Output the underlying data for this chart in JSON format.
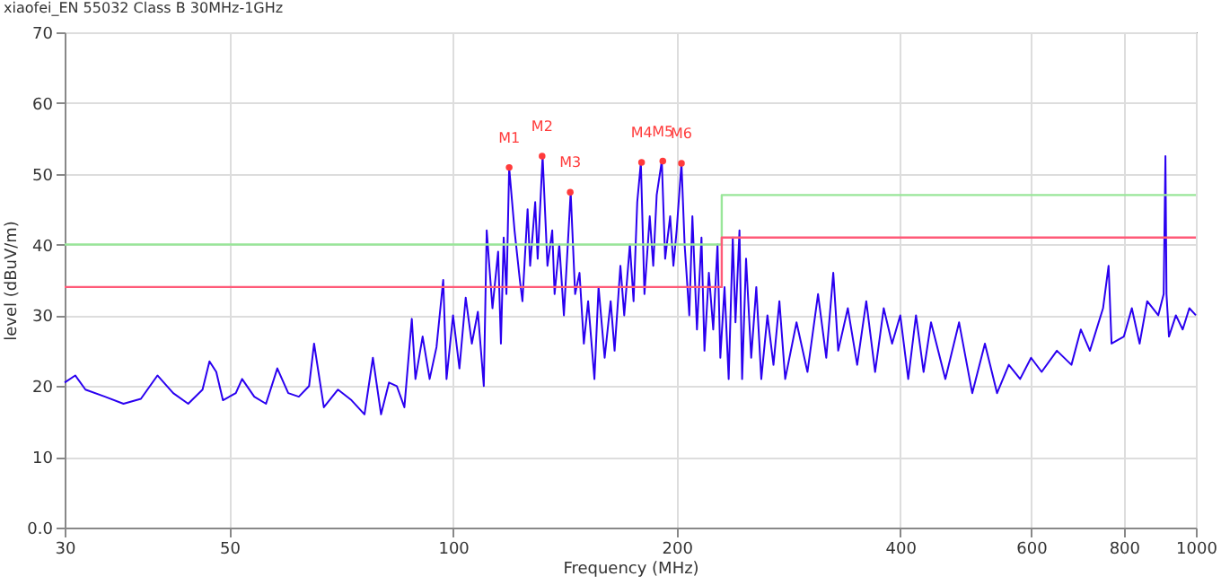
{
  "chart_data": {
    "type": "line",
    "title": "xiaofei_EN 55032 Class B 30MHz-1GHz",
    "xlabel": "Frequency (MHz)",
    "ylabel": "level (dBuV/m)",
    "log": "x",
    "xlim": [
      30,
      1000
    ],
    "xticks": [
      30,
      50,
      100,
      200,
      400,
      600,
      800,
      1000
    ],
    "ylim": [
      0,
      70
    ],
    "yticks": [
      {
        "value": 0,
        "label": "0.0"
      },
      10,
      20,
      30,
      40,
      50,
      60,
      70
    ],
    "grid": true,
    "series": [
      {
        "type": "line",
        "color": "#2a00f0",
        "x": [
          30,
          31,
          32,
          34,
          36,
          38,
          40,
          42,
          44,
          46,
          47,
          48,
          49,
          51,
          52,
          54,
          56,
          58,
          60,
          62,
          64,
          65,
          67,
          70,
          73,
          76,
          78,
          80,
          82,
          84,
          86,
          88,
          89,
          91,
          93,
          95,
          97,
          98,
          100,
          102,
          104,
          106,
          108,
          110,
          111,
          113,
          115,
          116,
          117,
          118,
          119,
          121,
          123,
          124,
          126,
          127,
          129,
          130,
          132,
          134,
          136,
          137,
          139,
          141,
          144,
          146,
          148,
          150,
          152,
          155,
          157,
          160,
          163,
          165,
          168,
          170,
          173,
          175,
          177,
          179,
          181,
          184,
          186,
          188,
          191,
          193,
          196,
          198,
          200,
          203,
          205,
          208,
          210,
          213,
          216,
          218,
          221,
          224,
          227,
          229,
          232,
          235,
          238,
          240,
          243,
          245,
          248,
          252,
          256,
          260,
          265,
          270,
          275,
          280,
          290,
          300,
          310,
          318,
          325,
          330,
          340,
          350,
          360,
          370,
          380,
          390,
          400,
          410,
          420,
          430,
          440,
          460,
          480,
          500,
          520,
          540,
          560,
          580,
          600,
          620,
          650,
          680,
          700,
          720,
          750,
          763,
          770,
          800,
          820,
          840,
          860,
          890,
          905,
          910,
          913,
          920,
          940,
          960,
          980,
          1000
        ],
        "values": [
          20.5,
          21.5,
          19.5,
          18.5,
          17.5,
          18.2,
          21.5,
          19,
          17.5,
          19.5,
          23.5,
          22,
          18,
          19,
          21,
          18.5,
          17.5,
          22.5,
          19,
          18.5,
          20,
          26,
          17,
          19.5,
          18,
          16,
          24,
          16,
          20.5,
          20,
          17,
          29.5,
          21,
          27,
          21,
          25.5,
          35,
          21,
          30,
          22.5,
          32.5,
          26,
          30.5,
          20,
          42,
          31,
          39,
          26,
          41,
          33,
          50.9,
          42,
          35,
          32,
          45,
          37,
          46,
          38,
          52.5,
          37,
          42,
          33,
          40,
          30,
          47.4,
          33,
          36,
          26,
          32,
          21,
          34,
          24,
          32,
          25,
          37,
          30,
          40,
          32,
          46,
          51.6,
          33,
          44,
          37,
          47,
          51.8,
          38,
          44,
          37,
          42,
          51.5,
          40,
          30,
          44,
          28,
          41,
          25,
          36,
          28,
          40,
          24,
          34,
          21,
          41,
          29,
          42,
          21,
          38,
          24,
          34,
          21,
          30,
          23,
          32,
          21,
          29,
          22,
          33,
          24,
          36,
          25,
          31,
          23,
          32,
          22,
          31,
          26,
          30,
          21,
          30,
          22,
          29,
          21,
          29,
          19,
          26,
          19,
          23,
          21,
          24,
          22,
          25,
          23,
          28,
          25,
          31,
          37,
          26,
          27,
          31,
          26,
          32,
          30,
          33,
          52.5,
          33,
          27,
          30,
          28,
          31,
          30
        ]
      },
      {
        "type": "step",
        "color": "#99e699",
        "x": [
          30,
          230,
          1000
        ],
        "values": [
          40,
          47,
          47
        ]
      },
      {
        "type": "step",
        "color": "#ff5a78",
        "x": [
          30,
          230,
          1000
        ],
        "values": [
          34,
          41,
          41
        ]
      },
      {
        "type": "scatter",
        "color": "#ff3b3b",
        "marker": "circle",
        "x": [
          119,
          131.8,
          143.8,
          179.4,
          191.6,
          203
        ],
        "values": [
          50.9,
          52.5,
          47.4,
          51.6,
          51.8,
          51.5
        ]
      }
    ],
    "annotations": [
      {
        "text": "M1",
        "x": 119,
        "y": 50.9
      },
      {
        "text": "M2",
        "x": 131.8,
        "y": 52.5
      },
      {
        "text": "M3",
        "x": 143.8,
        "y": 47.4
      },
      {
        "text": "M4",
        "x": 179.4,
        "y": 51.6
      },
      {
        "text": "M5",
        "x": 191.6,
        "y": 51.8
      },
      {
        "text": "M6",
        "x": 203,
        "y": 51.5
      }
    ]
  }
}
